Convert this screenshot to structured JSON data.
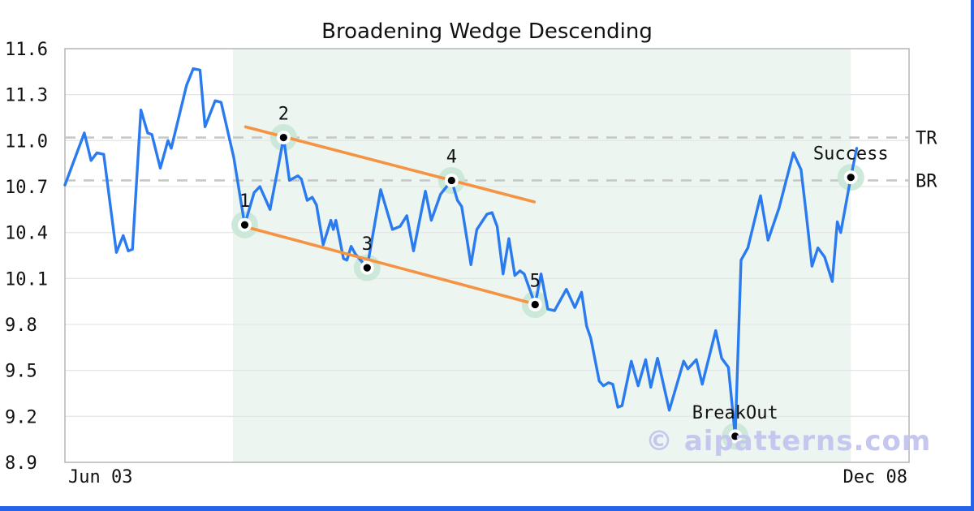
{
  "title": "Broadening Wedge Descending",
  "watermark": "© aipatterns.com",
  "colors": {
    "price_line": "#2b7bf0",
    "trendline": "#f59342",
    "halo": "#c8e7d6",
    "marker_ring": "#ffffff",
    "marker_dot": "#000000",
    "shade": "#ecf5f0",
    "grid": "#e6e6e6",
    "border": "#b5b5b5",
    "dashed": "#c8c8c8",
    "watermark": "#c6c7ee",
    "edge_bars": "#2563eb",
    "text": "#111111"
  },
  "chart_data": {
    "type": "line",
    "title": "Broadening Wedge Descending",
    "xlabel": "",
    "ylabel": "",
    "ylim": [
      8.9,
      11.6
    ],
    "y_tick_labels": [
      "8.9",
      "9.2",
      "9.5",
      "9.8",
      "10.1",
      "10.4",
      "10.7",
      "11.0",
      "11.3",
      "11.6"
    ],
    "x_tick_labels": {
      "start": "Jun 03",
      "end": "Dec 08"
    },
    "grid": "horizontal",
    "legend": "none",
    "pattern_zone": {
      "x_start": 0.199,
      "x_end": 0.931
    },
    "levels": [
      {
        "label": "TR",
        "value": 11.02
      },
      {
        "label": "BR",
        "value": 10.74
      }
    ],
    "trendlines": [
      {
        "name": "upper",
        "x1": 0.214,
        "y1": 11.09,
        "x2": 0.556,
        "y2": 10.6
      },
      {
        "name": "lower",
        "x1": 0.212,
        "y1": 10.44,
        "x2": 0.552,
        "y2": 9.94
      }
    ],
    "markers": [
      {
        "label": "1",
        "x": 0.213,
        "value": 10.45
      },
      {
        "label": "2",
        "x": 0.259,
        "value": 11.02
      },
      {
        "label": "3",
        "x": 0.358,
        "value": 10.17
      },
      {
        "label": "4",
        "x": 0.458,
        "value": 10.74
      },
      {
        "label": "5",
        "x": 0.557,
        "value": 9.93
      },
      {
        "label": "BreakOut",
        "x": 0.794,
        "value": 9.07
      },
      {
        "label": "Success",
        "x": 0.931,
        "value": 10.76
      }
    ],
    "series": [
      {
        "name": "price",
        "points": [
          [
            0.0,
            10.71
          ],
          [
            0.023,
            11.05
          ],
          [
            0.031,
            10.87
          ],
          [
            0.038,
            10.92
          ],
          [
            0.046,
            10.91
          ],
          [
            0.061,
            10.27
          ],
          [
            0.069,
            10.38
          ],
          [
            0.075,
            10.28
          ],
          [
            0.08,
            10.29
          ],
          [
            0.09,
            11.2
          ],
          [
            0.098,
            11.05
          ],
          [
            0.103,
            11.04
          ],
          [
            0.113,
            10.82
          ],
          [
            0.122,
            11.0
          ],
          [
            0.126,
            10.95
          ],
          [
            0.144,
            11.36
          ],
          [
            0.152,
            11.47
          ],
          [
            0.16,
            11.46
          ],
          [
            0.166,
            11.09
          ],
          [
            0.178,
            11.26
          ],
          [
            0.185,
            11.25
          ],
          [
            0.2,
            10.89
          ],
          [
            0.213,
            10.45
          ],
          [
            0.224,
            10.66
          ],
          [
            0.231,
            10.7
          ],
          [
            0.243,
            10.55
          ],
          [
            0.252,
            10.81
          ],
          [
            0.259,
            11.02
          ],
          [
            0.266,
            10.74
          ],
          [
            0.276,
            10.77
          ],
          [
            0.28,
            10.75
          ],
          [
            0.287,
            10.61
          ],
          [
            0.293,
            10.63
          ],
          [
            0.298,
            10.58
          ],
          [
            0.306,
            10.32
          ],
          [
            0.315,
            10.48
          ],
          [
            0.318,
            10.42
          ],
          [
            0.321,
            10.48
          ],
          [
            0.33,
            10.23
          ],
          [
            0.334,
            10.22
          ],
          [
            0.339,
            10.31
          ],
          [
            0.344,
            10.26
          ],
          [
            0.358,
            10.17
          ],
          [
            0.374,
            10.68
          ],
          [
            0.388,
            10.42
          ],
          [
            0.397,
            10.44
          ],
          [
            0.405,
            10.51
          ],
          [
            0.413,
            10.28
          ],
          [
            0.427,
            10.67
          ],
          [
            0.434,
            10.48
          ],
          [
            0.445,
            10.65
          ],
          [
            0.458,
            10.74
          ],
          [
            0.465,
            10.61
          ],
          [
            0.47,
            10.57
          ],
          [
            0.475,
            10.4
          ],
          [
            0.481,
            10.19
          ],
          [
            0.488,
            10.42
          ],
          [
            0.5,
            10.52
          ],
          [
            0.506,
            10.53
          ],
          [
            0.512,
            10.44
          ],
          [
            0.519,
            10.13
          ],
          [
            0.526,
            10.36
          ],
          [
            0.533,
            10.12
          ],
          [
            0.539,
            10.15
          ],
          [
            0.544,
            10.13
          ],
          [
            0.557,
            9.93
          ],
          [
            0.564,
            10.13
          ],
          [
            0.572,
            9.9
          ],
          [
            0.58,
            9.89
          ],
          [
            0.594,
            10.03
          ],
          [
            0.604,
            9.91
          ],
          [
            0.612,
            10.01
          ],
          [
            0.618,
            9.79
          ],
          [
            0.623,
            9.71
          ],
          [
            0.633,
            9.43
          ],
          [
            0.638,
            9.4
          ],
          [
            0.644,
            9.42
          ],
          [
            0.649,
            9.41
          ],
          [
            0.655,
            9.26
          ],
          [
            0.66,
            9.27
          ],
          [
            0.671,
            9.56
          ],
          [
            0.679,
            9.4
          ],
          [
            0.688,
            9.57
          ],
          [
            0.694,
            9.39
          ],
          [
            0.702,
            9.58
          ],
          [
            0.716,
            9.24
          ],
          [
            0.733,
            9.56
          ],
          [
            0.738,
            9.51
          ],
          [
            0.748,
            9.57
          ],
          [
            0.755,
            9.41
          ],
          [
            0.771,
            9.76
          ],
          [
            0.778,
            9.58
          ],
          [
            0.786,
            9.52
          ],
          [
            0.794,
            9.07
          ],
          [
            0.801,
            10.22
          ],
          [
            0.809,
            10.3
          ],
          [
            0.824,
            10.64
          ],
          [
            0.833,
            10.35
          ],
          [
            0.846,
            10.56
          ],
          [
            0.863,
            10.92
          ],
          [
            0.872,
            10.81
          ],
          [
            0.878,
            10.53
          ],
          [
            0.885,
            10.18
          ],
          [
            0.892,
            10.3
          ],
          [
            0.9,
            10.24
          ],
          [
            0.909,
            10.08
          ],
          [
            0.915,
            10.47
          ],
          [
            0.919,
            10.4
          ],
          [
            0.931,
            10.76
          ],
          [
            0.938,
            10.95
          ]
        ]
      }
    ]
  }
}
